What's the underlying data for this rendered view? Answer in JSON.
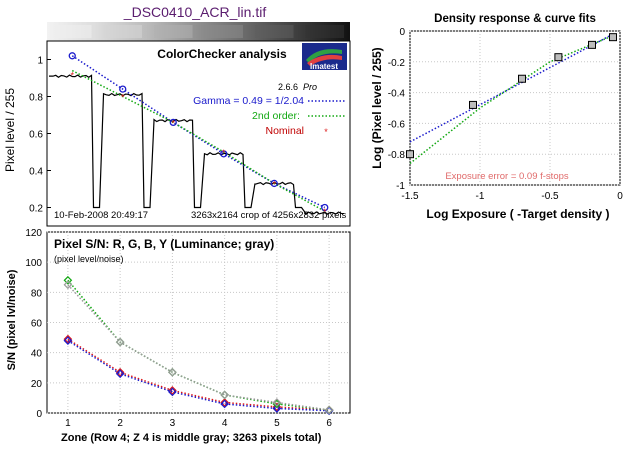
{
  "window": {
    "file_title": "_DSC0410_ACR_lin.tif"
  },
  "colors": {
    "title": "#5a1c6e",
    "blue": "#1a1acc",
    "green": "#12a812",
    "red": "#dd1a1a",
    "gamma_label": "#1a1acc",
    "order_label": "#12a812",
    "nominal_label": "#c00000",
    "exposure_error": "#e06a6a",
    "grid": "#c8c8c8",
    "gray_square": "#bdbdbd"
  },
  "chart_data": [
    {
      "id": "colorchecker",
      "type": "line",
      "title": "ColorChecker analysis",
      "ylabel": "Pixel level / 255",
      "xlabel": "",
      "ylim": [
        0.1,
        1.1
      ],
      "yticks": [
        0.2,
        0.4,
        0.6,
        0.8,
        1
      ],
      "ytick_labels": [
        "0.2",
        "0.4",
        "0.6",
        "0.8",
        "1"
      ],
      "grid": false,
      "logo": {
        "text": "Imatest",
        "version": "2.6.6",
        "edition": "Pro"
      },
      "legend": [
        {
          "name": "Gamma = 0.49 = 1/2.04",
          "color": "blue",
          "style": "dotted"
        },
        {
          "name": "2nd order",
          "color": "green",
          "style": "dotted"
        },
        {
          "name": "Nominal",
          "color": "red",
          "style": "marker"
        }
      ],
      "zones": [
        1,
        2,
        3,
        4,
        5,
        6
      ],
      "measured_levels": [
        1.02,
        0.84,
        0.66,
        0.49,
        0.33,
        0.2
      ],
      "nominal_levels": [
        0.92,
        0.8,
        0.66,
        0.5,
        0.33,
        0.18
      ],
      "profile_plateaus": [
        0.91,
        0.81,
        0.67,
        0.49,
        0.33,
        0.17
      ],
      "footer_date": "10-Feb-2008 20:49:17",
      "footer_crop": "3263x2164 crop of 4256x2832 pixels"
    },
    {
      "id": "density",
      "type": "scatter",
      "title": "Density response & curve fits",
      "xlabel": "Log Exposure ( -Target density )",
      "ylabel": "Log (Pixel level / 255)",
      "xlim": [
        -1.5,
        0
      ],
      "ylim": [
        -1,
        0
      ],
      "xticks": [
        -1.5,
        -1,
        -0.5,
        0
      ],
      "xtick_labels": [
        "-1.5",
        "-1",
        "-0.5",
        "0"
      ],
      "yticks": [
        -1,
        -0.8,
        -0.6,
        -0.4,
        -0.2,
        0
      ],
      "ytick_labels": [
        "-1",
        "-0.8",
        "-0.6",
        "-0.4",
        "-0.2",
        "0"
      ],
      "grid": true,
      "points": [
        {
          "x": -1.5,
          "y": -0.8
        },
        {
          "x": -1.05,
          "y": -0.48
        },
        {
          "x": -0.7,
          "y": -0.31
        },
        {
          "x": -0.44,
          "y": -0.17
        },
        {
          "x": -0.2,
          "y": -0.09
        },
        {
          "x": -0.05,
          "y": -0.04
        }
      ],
      "blue_fit": [
        [
          -1.5,
          -0.72
        ],
        [
          -0.05,
          -0.02
        ]
      ],
      "green_fit": [
        [
          -1.5,
          -0.86
        ],
        [
          -1.0,
          -0.5
        ],
        [
          -0.5,
          -0.2
        ],
        [
          -0.05,
          -0.03
        ]
      ],
      "annotation": "Exposure error = 0.09 f-stops"
    },
    {
      "id": "snr",
      "type": "line",
      "title": "Pixel S/N: R, G, B, Y (Luminance; gray)",
      "subtitle": "(pixel level/noise)",
      "xlabel": "Zone  (Row 4;  Z 4 is middle gray;  3263 pixels total)",
      "ylabel": "S/N (pixel lvl/noise)",
      "xlim": [
        0.6,
        6.4
      ],
      "ylim": [
        0,
        120
      ],
      "xticks": [
        1,
        2,
        3,
        4,
        5,
        6
      ],
      "xtick_labels": [
        "1",
        "2",
        "3",
        "4",
        "5",
        "6"
      ],
      "yticks": [
        0,
        20,
        40,
        60,
        80,
        100,
        120
      ],
      "ytick_labels": [
        "0",
        "20",
        "40",
        "60",
        "80",
        "100",
        "120"
      ],
      "grid": true,
      "x": [
        1,
        2,
        3,
        4,
        5,
        6
      ],
      "series": [
        {
          "color": "red",
          "values": [
            49,
            27,
            15,
            7,
            4,
            2
          ]
        },
        {
          "color": "blue",
          "values": [
            48,
            26,
            14,
            6,
            3,
            1.5
          ]
        },
        {
          "color": "green",
          "values": [
            88,
            47,
            27,
            12,
            6,
            2
          ]
        },
        {
          "color": "gray",
          "values": [
            85,
            47,
            27,
            12,
            7,
            2
          ]
        }
      ]
    }
  ]
}
